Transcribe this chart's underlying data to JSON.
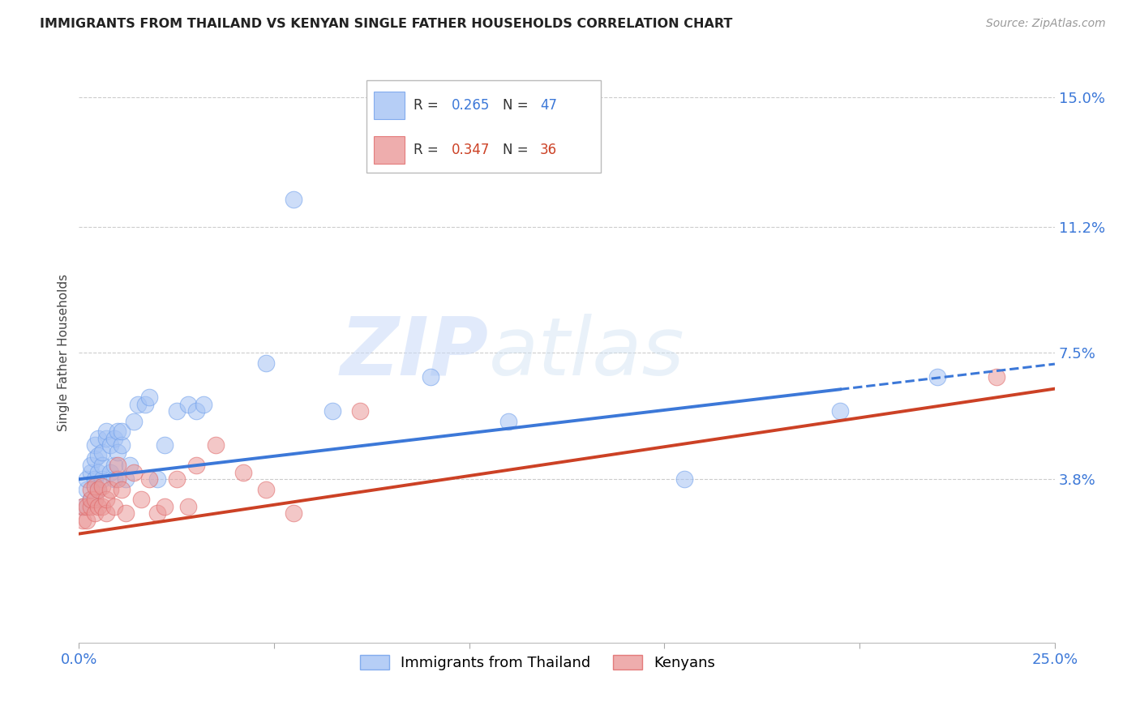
{
  "title": "IMMIGRANTS FROM THAILAND VS KENYAN SINGLE FATHER HOUSEHOLDS CORRELATION CHART",
  "source": "Source: ZipAtlas.com",
  "ylabel": "Single Father Households",
  "xlim": [
    0.0,
    0.25
  ],
  "ylim": [
    -0.01,
    0.16
  ],
  "yticks": [
    0.038,
    0.075,
    0.112,
    0.15
  ],
  "ytick_labels": [
    "3.8%",
    "7.5%",
    "11.2%",
    "15.0%"
  ],
  "xticks": [
    0.0,
    0.05,
    0.1,
    0.15,
    0.2,
    0.25
  ],
  "xtick_labels": [
    "0.0%",
    "",
    "",
    "",
    "",
    "25.0%"
  ],
  "legend1_r": "0.265",
  "legend1_n": "47",
  "legend2_r": "0.347",
  "legend2_n": "36",
  "blue_scatter_color": "#a4c2f4",
  "blue_edge_color": "#6d9eeb",
  "pink_scatter_color": "#ea9999",
  "pink_edge_color": "#e06666",
  "trendline_blue": "#3c78d8",
  "trendline_pink": "#cc4125",
  "watermark_zip": "ZIP",
  "watermark_atlas": "atlas",
  "bg_color": "#ffffff",
  "grid_color": "#cccccc",
  "thailand_x": [
    0.001,
    0.002,
    0.002,
    0.003,
    0.003,
    0.003,
    0.004,
    0.004,
    0.004,
    0.005,
    0.005,
    0.005,
    0.005,
    0.006,
    0.006,
    0.006,
    0.007,
    0.007,
    0.008,
    0.008,
    0.009,
    0.009,
    0.009,
    0.01,
    0.01,
    0.011,
    0.011,
    0.012,
    0.013,
    0.014,
    0.015,
    0.017,
    0.018,
    0.02,
    0.022,
    0.025,
    0.028,
    0.03,
    0.032,
    0.048,
    0.055,
    0.065,
    0.09,
    0.11,
    0.155,
    0.195,
    0.22
  ],
  "thailand_y": [
    0.03,
    0.035,
    0.038,
    0.032,
    0.04,
    0.042,
    0.038,
    0.044,
    0.048,
    0.035,
    0.04,
    0.045,
    0.05,
    0.038,
    0.042,
    0.046,
    0.05,
    0.052,
    0.04,
    0.048,
    0.038,
    0.042,
    0.05,
    0.046,
    0.052,
    0.048,
    0.052,
    0.038,
    0.042,
    0.055,
    0.06,
    0.06,
    0.062,
    0.038,
    0.048,
    0.058,
    0.06,
    0.058,
    0.06,
    0.072,
    0.12,
    0.058,
    0.068,
    0.055,
    0.038,
    0.058,
    0.068
  ],
  "kenya_x": [
    0.001,
    0.001,
    0.002,
    0.002,
    0.003,
    0.003,
    0.003,
    0.004,
    0.004,
    0.004,
    0.005,
    0.005,
    0.006,
    0.006,
    0.007,
    0.007,
    0.008,
    0.009,
    0.01,
    0.01,
    0.011,
    0.012,
    0.014,
    0.016,
    0.018,
    0.02,
    0.022,
    0.025,
    0.028,
    0.03,
    0.035,
    0.042,
    0.048,
    0.055,
    0.072,
    0.235
  ],
  "kenya_y": [
    0.026,
    0.03,
    0.026,
    0.03,
    0.03,
    0.032,
    0.035,
    0.028,
    0.032,
    0.036,
    0.03,
    0.035,
    0.03,
    0.036,
    0.028,
    0.032,
    0.035,
    0.03,
    0.038,
    0.042,
    0.035,
    0.028,
    0.04,
    0.032,
    0.038,
    0.028,
    0.03,
    0.038,
    0.03,
    0.042,
    0.048,
    0.04,
    0.035,
    0.028,
    0.058,
    0.068
  ],
  "blue_trend_x0": 0.0,
  "blue_trend_x1": 0.195,
  "blue_trend_xdash0": 0.195,
  "blue_trend_xdash1": 0.25,
  "blue_trend_y_intercept": 0.038,
  "blue_trend_slope": 0.135,
  "pink_trend_x0": 0.0,
  "pink_trend_x1": 0.25,
  "pink_trend_y_intercept": 0.022,
  "pink_trend_slope": 0.17
}
